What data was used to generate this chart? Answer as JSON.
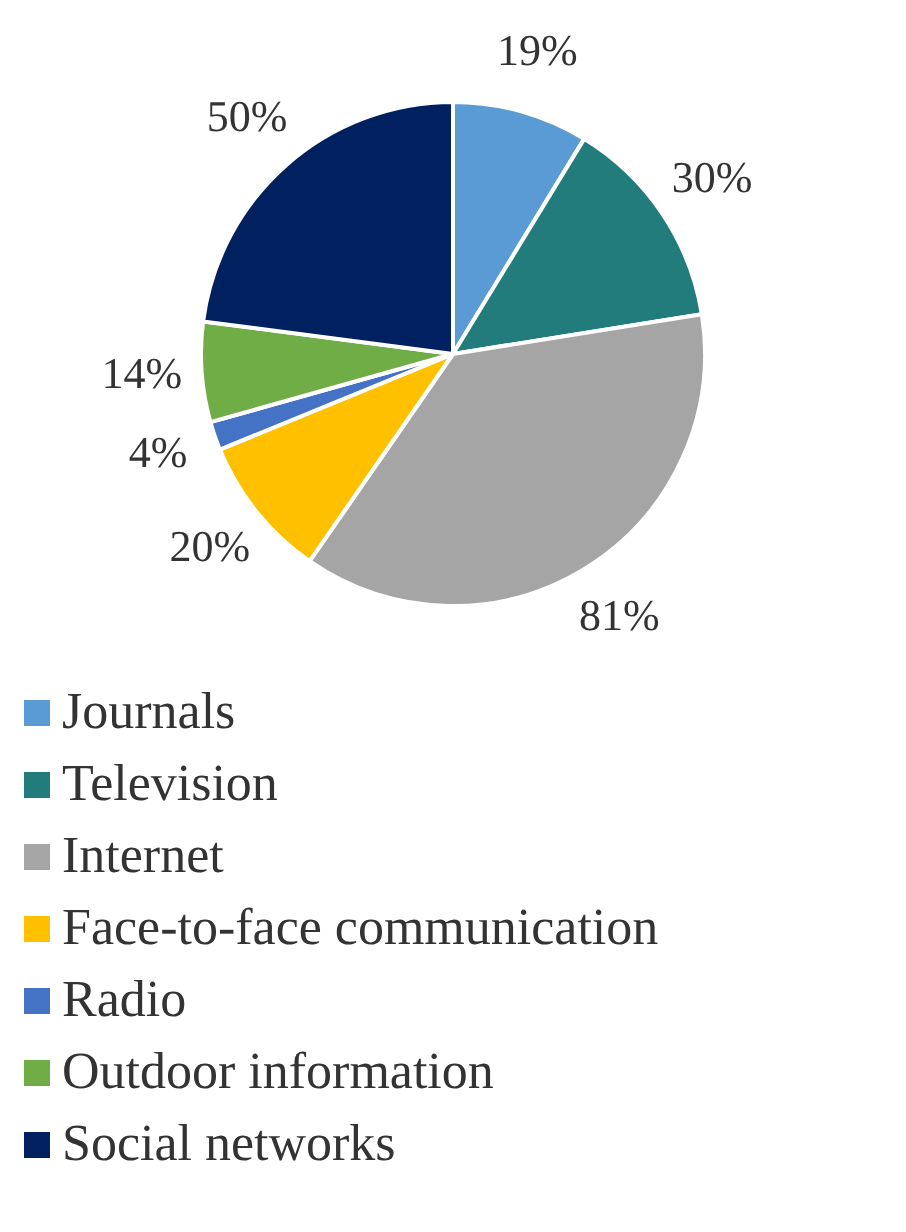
{
  "chart_data": {
    "type": "pie",
    "categories": [
      "Journals",
      "Television",
      "Internet",
      "Face-to-face communication",
      "Radio",
      "Outdoor information",
      "Social networks"
    ],
    "values": [
      19,
      30,
      81,
      20,
      4,
      14,
      50
    ],
    "colors": [
      "#5b9bd5",
      "#237c7c",
      "#a5a5a5",
      "#ffc000",
      "#4472c4",
      "#70ad47",
      "#002060"
    ],
    "value_labels": [
      "19%",
      "30%",
      "81%",
      "20%",
      "4%",
      "14%",
      "50%"
    ],
    "legend": "bottom"
  }
}
